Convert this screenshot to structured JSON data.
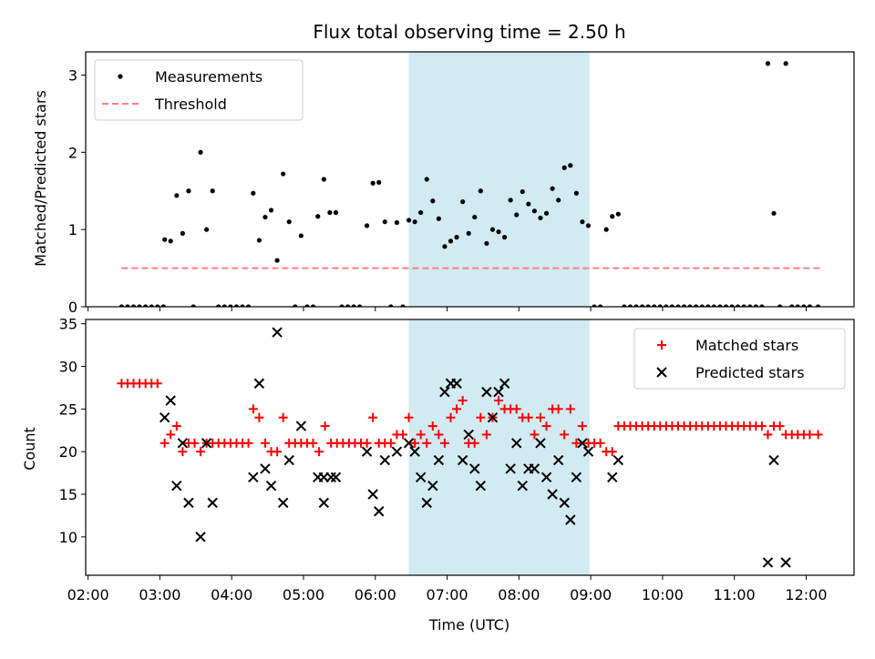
{
  "chart_data": {
    "title": "Flux total observing time = 2.50 h",
    "xlabel": "Time (UTC)",
    "x_ticks": [
      "02:00",
      "03:00",
      "04:00",
      "05:00",
      "06:00",
      "07:00",
      "08:00",
      "09:00",
      "10:00",
      "11:00",
      "12:00"
    ],
    "xlim": [
      "01:58",
      "12:40"
    ],
    "shaded_span": [
      "06:28",
      "08:59"
    ],
    "colors": {
      "shade": "#add8e6",
      "threshold": "#ff7f7f",
      "matched": "#ff0000",
      "predicted": "#000000",
      "measurement": "#000000"
    },
    "panels": [
      {
        "type": "scatter",
        "ylabel": "Matched/Predicted stars",
        "ylim": [
          0,
          3.3
        ],
        "y_ticks": [
          0,
          1,
          2,
          3
        ],
        "legend": {
          "placement": "upper-left",
          "entries": [
            "Measurements",
            "Threshold"
          ]
        },
        "threshold": {
          "value": 0.5,
          "x_range": [
            "02:28",
            "12:12"
          ]
        },
        "measurements": [
          [
            "02:28",
            0
          ],
          [
            "02:33",
            0
          ],
          [
            "02:38",
            0
          ],
          [
            "02:43",
            0
          ],
          [
            "02:48",
            0
          ],
          [
            "02:53",
            0
          ],
          [
            "02:58",
            0
          ],
          [
            "03:03",
            0
          ],
          [
            "03:04",
            0.87
          ],
          [
            "03:09",
            0.85
          ],
          [
            "03:14",
            1.44
          ],
          [
            "03:19",
            0.95
          ],
          [
            "03:24",
            1.5
          ],
          [
            "03:28",
            0
          ],
          [
            "03:34",
            2.0
          ],
          [
            "03:39",
            1.0
          ],
          [
            "03:44",
            1.5
          ],
          [
            "03:49",
            0
          ],
          [
            "03:54",
            0
          ],
          [
            "03:59",
            0
          ],
          [
            "04:04",
            0
          ],
          [
            "04:09",
            0
          ],
          [
            "04:14",
            0
          ],
          [
            "04:18",
            1.47
          ],
          [
            "04:23",
            0.86
          ],
          [
            "04:28",
            1.16
          ],
          [
            "04:33",
            1.25
          ],
          [
            "04:38",
            0.6
          ],
          [
            "04:43",
            1.72
          ],
          [
            "04:48",
            1.1
          ],
          [
            "04:53",
            0
          ],
          [
            "04:58",
            0.92
          ],
          [
            "05:03",
            0
          ],
          [
            "05:08",
            0
          ],
          [
            "05:12",
            1.17
          ],
          [
            "05:17",
            1.65
          ],
          [
            "05:22",
            1.22
          ],
          [
            "05:27",
            1.22
          ],
          [
            "05:32",
            0
          ],
          [
            "05:37",
            0
          ],
          [
            "05:42",
            0
          ],
          [
            "05:47",
            0
          ],
          [
            "05:53",
            1.05
          ],
          [
            "05:58",
            1.6
          ],
          [
            "06:03",
            1.61
          ],
          [
            "06:08",
            1.1
          ],
          [
            "06:13",
            0
          ],
          [
            "06:18",
            1.09
          ],
          [
            "06:23",
            0
          ],
          [
            "06:28",
            1.12
          ],
          [
            "06:33",
            1.1
          ],
          [
            "06:38",
            1.22
          ],
          [
            "06:43",
            1.65
          ],
          [
            "06:48",
            1.37
          ],
          [
            "06:53",
            1.14
          ],
          [
            "06:58",
            0.78
          ],
          [
            "07:03",
            0.85
          ],
          [
            "07:08",
            0.9
          ],
          [
            "07:13",
            1.36
          ],
          [
            "07:18",
            0.95
          ],
          [
            "07:23",
            1.16
          ],
          [
            "07:28",
            1.5
          ],
          [
            "07:33",
            0.82
          ],
          [
            "07:38",
            1.0
          ],
          [
            "07:43",
            0.97
          ],
          [
            "07:48",
            0.9
          ],
          [
            "07:53",
            1.38
          ],
          [
            "07:58",
            1.19
          ],
          [
            "08:03",
            1.49
          ],
          [
            "08:08",
            1.33
          ],
          [
            "08:13",
            1.24
          ],
          [
            "08:18",
            1.15
          ],
          [
            "08:23",
            1.21
          ],
          [
            "08:28",
            1.53
          ],
          [
            "08:33",
            1.38
          ],
          [
            "08:38",
            1.8
          ],
          [
            "08:43",
            1.83
          ],
          [
            "08:48",
            1.47
          ],
          [
            "08:53",
            1.1
          ],
          [
            "08:58",
            1.05
          ],
          [
            "09:03",
            0
          ],
          [
            "09:08",
            0
          ],
          [
            "09:13",
            1.0
          ],
          [
            "09:18",
            1.17
          ],
          [
            "09:23",
            1.2
          ],
          [
            "09:28",
            0
          ],
          [
            "09:33",
            0
          ],
          [
            "09:38",
            0
          ],
          [
            "09:43",
            0
          ],
          [
            "09:48",
            0
          ],
          [
            "09:53",
            0
          ],
          [
            "09:58",
            0
          ],
          [
            "10:03",
            0
          ],
          [
            "10:08",
            0
          ],
          [
            "10:13",
            0
          ],
          [
            "10:18",
            0
          ],
          [
            "10:23",
            0
          ],
          [
            "10:28",
            0
          ],
          [
            "10:33",
            0
          ],
          [
            "10:38",
            0
          ],
          [
            "10:43",
            0
          ],
          [
            "10:48",
            0
          ],
          [
            "10:53",
            0
          ],
          [
            "10:58",
            0
          ],
          [
            "11:03",
            0
          ],
          [
            "11:08",
            0
          ],
          [
            "11:13",
            0
          ],
          [
            "11:18",
            0
          ],
          [
            "11:23",
            0
          ],
          [
            "11:28",
            3.15
          ],
          [
            "11:33",
            1.21
          ],
          [
            "11:38",
            0
          ],
          [
            "11:43",
            3.15
          ],
          [
            "11:48",
            0
          ],
          [
            "11:53",
            0
          ],
          [
            "11:58",
            0
          ],
          [
            "12:03",
            0
          ],
          [
            "12:10",
            0
          ]
        ]
      },
      {
        "type": "scatter",
        "ylabel": "Count",
        "ylim": [
          5.5,
          35.5
        ],
        "y_ticks": [
          10,
          15,
          20,
          25,
          30,
          35
        ],
        "legend": {
          "placement": "upper-right",
          "entries": [
            "Matched stars",
            "Predicted stars"
          ]
        },
        "matched": [
          [
            "02:28",
            28
          ],
          [
            "02:33",
            28
          ],
          [
            "02:38",
            28
          ],
          [
            "02:43",
            28
          ],
          [
            "02:48",
            28
          ],
          [
            "02:53",
            28
          ],
          [
            "02:58",
            28
          ],
          [
            "03:04",
            21
          ],
          [
            "03:09",
            22
          ],
          [
            "03:14",
            23
          ],
          [
            "03:19",
            20
          ],
          [
            "03:24",
            21
          ],
          [
            "03:29",
            21
          ],
          [
            "03:34",
            20
          ],
          [
            "03:39",
            21
          ],
          [
            "03:44",
            21
          ],
          [
            "03:49",
            21
          ],
          [
            "03:54",
            21
          ],
          [
            "03:59",
            21
          ],
          [
            "04:04",
            21
          ],
          [
            "04:09",
            21
          ],
          [
            "04:14",
            21
          ],
          [
            "04:18",
            25
          ],
          [
            "04:23",
            24
          ],
          [
            "04:28",
            21
          ],
          [
            "04:33",
            20
          ],
          [
            "04:38",
            20
          ],
          [
            "04:43",
            24
          ],
          [
            "04:48",
            21
          ],
          [
            "04:53",
            21
          ],
          [
            "04:58",
            21
          ],
          [
            "05:03",
            21
          ],
          [
            "05:08",
            21
          ],
          [
            "05:13",
            20
          ],
          [
            "05:18",
            23
          ],
          [
            "05:23",
            21
          ],
          [
            "05:28",
            21
          ],
          [
            "05:33",
            21
          ],
          [
            "05:38",
            21
          ],
          [
            "05:43",
            21
          ],
          [
            "05:48",
            21
          ],
          [
            "05:53",
            21
          ],
          [
            "05:58",
            24
          ],
          [
            "06:03",
            21
          ],
          [
            "06:08",
            21
          ],
          [
            "06:13",
            21
          ],
          [
            "06:18",
            22
          ],
          [
            "06:23",
            22
          ],
          [
            "06:28",
            24
          ],
          [
            "06:33",
            21
          ],
          [
            "06:38",
            22
          ],
          [
            "06:43",
            21
          ],
          [
            "06:48",
            23
          ],
          [
            "06:53",
            22
          ],
          [
            "06:58",
            21
          ],
          [
            "07:03",
            24
          ],
          [
            "07:08",
            25
          ],
          [
            "07:13",
            26
          ],
          [
            "07:18",
            21
          ],
          [
            "07:23",
            21
          ],
          [
            "07:28",
            24
          ],
          [
            "07:33",
            22
          ],
          [
            "07:38",
            24
          ],
          [
            "07:43",
            26
          ],
          [
            "07:48",
            25
          ],
          [
            "07:53",
            25
          ],
          [
            "07:58",
            25
          ],
          [
            "08:03",
            24
          ],
          [
            "08:08",
            24
          ],
          [
            "08:13",
            22
          ],
          [
            "08:18",
            24
          ],
          [
            "08:23",
            23
          ],
          [
            "08:28",
            25
          ],
          [
            "08:33",
            25
          ],
          [
            "08:38",
            22
          ],
          [
            "08:43",
            25
          ],
          [
            "08:48",
            21
          ],
          [
            "08:53",
            23
          ],
          [
            "08:58",
            21
          ],
          [
            "09:03",
            21
          ],
          [
            "09:08",
            21
          ],
          [
            "09:13",
            20
          ],
          [
            "09:18",
            20
          ],
          [
            "09:23",
            23
          ],
          [
            "09:28",
            23
          ],
          [
            "09:33",
            23
          ],
          [
            "09:38",
            23
          ],
          [
            "09:43",
            23
          ],
          [
            "09:48",
            23
          ],
          [
            "09:53",
            23
          ],
          [
            "09:58",
            23
          ],
          [
            "10:03",
            23
          ],
          [
            "10:08",
            23
          ],
          [
            "10:13",
            23
          ],
          [
            "10:18",
            23
          ],
          [
            "10:23",
            23
          ],
          [
            "10:28",
            23
          ],
          [
            "10:33",
            23
          ],
          [
            "10:38",
            23
          ],
          [
            "10:43",
            23
          ],
          [
            "10:48",
            23
          ],
          [
            "10:53",
            23
          ],
          [
            "10:58",
            23
          ],
          [
            "11:03",
            23
          ],
          [
            "11:08",
            23
          ],
          [
            "11:13",
            23
          ],
          [
            "11:18",
            23
          ],
          [
            "11:23",
            23
          ],
          [
            "11:28",
            22
          ],
          [
            "11:33",
            23
          ],
          [
            "11:38",
            23
          ],
          [
            "11:43",
            22
          ],
          [
            "11:48",
            22
          ],
          [
            "11:53",
            22
          ],
          [
            "11:58",
            22
          ],
          [
            "12:03",
            22
          ],
          [
            "12:10",
            22
          ]
        ],
        "predicted": [
          [
            "03:04",
            24
          ],
          [
            "03:09",
            26
          ],
          [
            "03:14",
            16
          ],
          [
            "03:19",
            21
          ],
          [
            "03:24",
            14
          ],
          [
            "03:34",
            10
          ],
          [
            "03:39",
            21
          ],
          [
            "03:44",
            14
          ],
          [
            "04:18",
            17
          ],
          [
            "04:23",
            28
          ],
          [
            "04:28",
            18
          ],
          [
            "04:33",
            16
          ],
          [
            "04:38",
            34
          ],
          [
            "04:43",
            14
          ],
          [
            "04:48",
            19
          ],
          [
            "04:58",
            23
          ],
          [
            "05:12",
            17
          ],
          [
            "05:17",
            14
          ],
          [
            "05:17",
            17
          ],
          [
            "05:23",
            17
          ],
          [
            "05:27",
            17
          ],
          [
            "05:53",
            20
          ],
          [
            "05:58",
            15
          ],
          [
            "06:03",
            13
          ],
          [
            "06:08",
            19
          ],
          [
            "06:18",
            20
          ],
          [
            "06:28",
            21
          ],
          [
            "06:33",
            20
          ],
          [
            "06:38",
            17
          ],
          [
            "06:43",
            14
          ],
          [
            "06:48",
            16
          ],
          [
            "06:53",
            19
          ],
          [
            "06:58",
            27
          ],
          [
            "07:03",
            28
          ],
          [
            "07:08",
            28
          ],
          [
            "07:13",
            19
          ],
          [
            "07:18",
            22
          ],
          [
            "07:23",
            18
          ],
          [
            "07:28",
            16
          ],
          [
            "07:33",
            27
          ],
          [
            "07:38",
            24
          ],
          [
            "07:43",
            27
          ],
          [
            "07:48",
            28
          ],
          [
            "07:53",
            18
          ],
          [
            "07:58",
            21
          ],
          [
            "08:03",
            16
          ],
          [
            "08:08",
            18
          ],
          [
            "08:13",
            18
          ],
          [
            "08:18",
            21
          ],
          [
            "08:23",
            17
          ],
          [
            "08:28",
            15
          ],
          [
            "08:33",
            19
          ],
          [
            "08:38",
            14
          ],
          [
            "08:43",
            12
          ],
          [
            "08:48",
            17
          ],
          [
            "08:53",
            21
          ],
          [
            "08:58",
            20
          ],
          [
            "09:18",
            17
          ],
          [
            "09:23",
            19
          ],
          [
            "11:28",
            7
          ],
          [
            "11:33",
            19
          ],
          [
            "11:43",
            7
          ]
        ]
      }
    ]
  }
}
